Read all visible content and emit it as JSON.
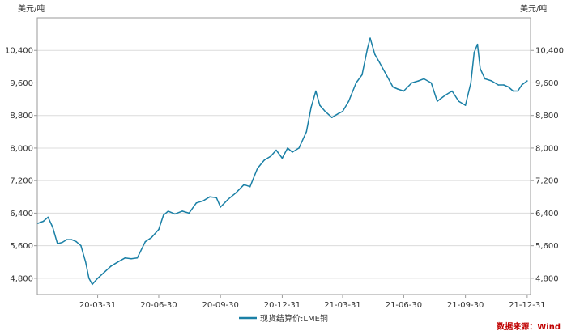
{
  "chart_data": {
    "type": "line",
    "unit_left": "美元/吨",
    "unit_right": "美元/吨",
    "ylim": [
      4400,
      11200
    ],
    "y_ticks": [
      4800,
      5600,
      6400,
      7200,
      8000,
      8800,
      9600,
      10400
    ],
    "y_tick_labels": [
      "4,800",
      "5,600",
      "6,400",
      "7,200",
      "8,000",
      "8,800",
      "9,600",
      "10,400"
    ],
    "xlim": [
      "2020-01-01",
      "2022-01-05"
    ],
    "x_ticks": [
      "2020-03-31",
      "2020-06-30",
      "2020-09-30",
      "2020-12-31",
      "2021-03-31",
      "2021-06-30",
      "2021-09-30",
      "2021-12-31"
    ],
    "x_tick_labels": [
      "20-03-31",
      "20-06-30",
      "20-09-30",
      "20-12-31",
      "21-03-31",
      "21-06-30",
      "21-09-30",
      "21-12-31"
    ],
    "grid": true,
    "legend_position": "bottom-center",
    "series": [
      {
        "name": "现货结算价:LME铜",
        "color": "#1b80a6",
        "x": [
          "2020-01-02",
          "2020-01-10",
          "2020-01-17",
          "2020-01-24",
          "2020-01-31",
          "2020-02-07",
          "2020-02-14",
          "2020-02-21",
          "2020-02-28",
          "2020-03-06",
          "2020-03-13",
          "2020-03-18",
          "2020-03-23",
          "2020-03-31",
          "2020-04-10",
          "2020-04-20",
          "2020-04-30",
          "2020-05-11",
          "2020-05-20",
          "2020-05-29",
          "2020-06-10",
          "2020-06-19",
          "2020-06-30",
          "2020-07-07",
          "2020-07-14",
          "2020-07-24",
          "2020-08-04",
          "2020-08-14",
          "2020-08-25",
          "2020-09-04",
          "2020-09-14",
          "2020-09-24",
          "2020-09-30",
          "2020-10-12",
          "2020-10-23",
          "2020-11-04",
          "2020-11-13",
          "2020-11-24",
          "2020-12-04",
          "2020-12-14",
          "2020-12-22",
          "2020-12-31",
          "2021-01-08",
          "2021-01-15",
          "2021-01-25",
          "2021-02-05",
          "2021-02-12",
          "2021-02-19",
          "2021-02-25",
          "2021-03-05",
          "2021-03-15",
          "2021-03-25",
          "2021-03-31",
          "2021-04-09",
          "2021-04-20",
          "2021-04-29",
          "2021-05-07",
          "2021-05-11",
          "2021-05-18",
          "2021-05-25",
          "2021-06-04",
          "2021-06-14",
          "2021-06-21",
          "2021-06-30",
          "2021-07-12",
          "2021-07-22",
          "2021-07-30",
          "2021-08-10",
          "2021-08-19",
          "2021-08-31",
          "2021-09-10",
          "2021-09-20",
          "2021-09-30",
          "2021-10-08",
          "2021-10-13",
          "2021-10-18",
          "2021-10-22",
          "2021-10-29",
          "2021-11-08",
          "2021-11-18",
          "2021-11-26",
          "2021-12-03",
          "2021-12-10",
          "2021-12-17",
          "2021-12-23",
          "2021-12-31"
        ],
        "values": [
          6150,
          6200,
          6300,
          6050,
          5650,
          5680,
          5750,
          5750,
          5700,
          5600,
          5200,
          4800,
          4650,
          4800,
          4950,
          5100,
          5200,
          5300,
          5280,
          5300,
          5700,
          5800,
          6000,
          6350,
          6450,
          6380,
          6450,
          6400,
          6650,
          6700,
          6800,
          6780,
          6550,
          6750,
          6900,
          7100,
          7050,
          7500,
          7700,
          7800,
          7950,
          7750,
          8000,
          7900,
          8000,
          8400,
          9000,
          9400,
          9050,
          8900,
          8750,
          8850,
          8900,
          9150,
          9600,
          9800,
          10450,
          10700,
          10300,
          10100,
          9800,
          9500,
          9450,
          9400,
          9600,
          9650,
          9700,
          9600,
          9150,
          9300,
          9400,
          9150,
          9050,
          9600,
          10350,
          10550,
          9950,
          9700,
          9650,
          9550,
          9550,
          9500,
          9400,
          9400,
          9550,
          9650
        ]
      }
    ]
  },
  "source_text": "数据来源：Wind"
}
